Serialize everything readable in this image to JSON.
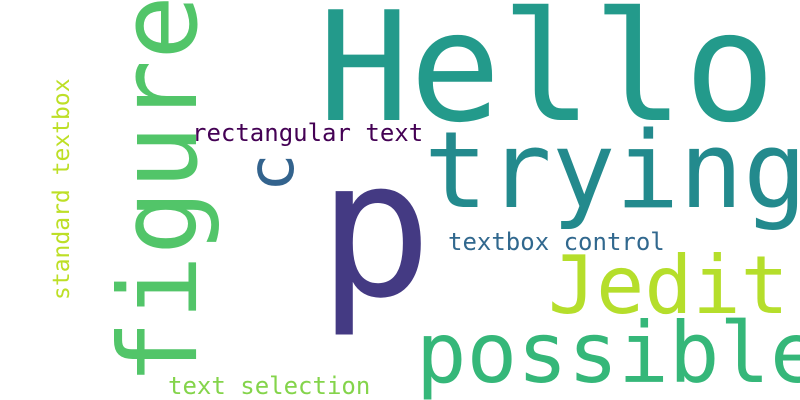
{
  "words": [
    {
      "id": "hello",
      "text": "Hello",
      "color": "#239a8b",
      "orientation": "horizontal"
    },
    {
      "id": "p",
      "text": "p",
      "color": "#443a83",
      "orientation": "horizontal"
    },
    {
      "id": "trying",
      "text": "trying",
      "color": "#238a8d",
      "orientation": "horizontal"
    },
    {
      "id": "figure",
      "text": "figure",
      "color": "#52c569",
      "orientation": "vertical"
    },
    {
      "id": "possible",
      "text": "possible",
      "color": "#35b779",
      "orientation": "horizontal"
    },
    {
      "id": "jedit",
      "text": "Jedit",
      "color": "#b5de2b",
      "orientation": "horizontal"
    },
    {
      "id": "c",
      "text": "c",
      "color": "#33638d",
      "orientation": "vertical"
    },
    {
      "id": "rectangular-text",
      "text": "rectangular text",
      "color": "#440154",
      "orientation": "horizontal"
    },
    {
      "id": "textbox-control",
      "text": "textbox control",
      "color": "#31688e",
      "orientation": "horizontal"
    },
    {
      "id": "standard-textbox",
      "text": "standard textbox",
      "color": "#bddf26",
      "orientation": "vertical"
    },
    {
      "id": "text-selection",
      "text": "text selection",
      "color": "#84d44b",
      "orientation": "horizontal"
    }
  ]
}
